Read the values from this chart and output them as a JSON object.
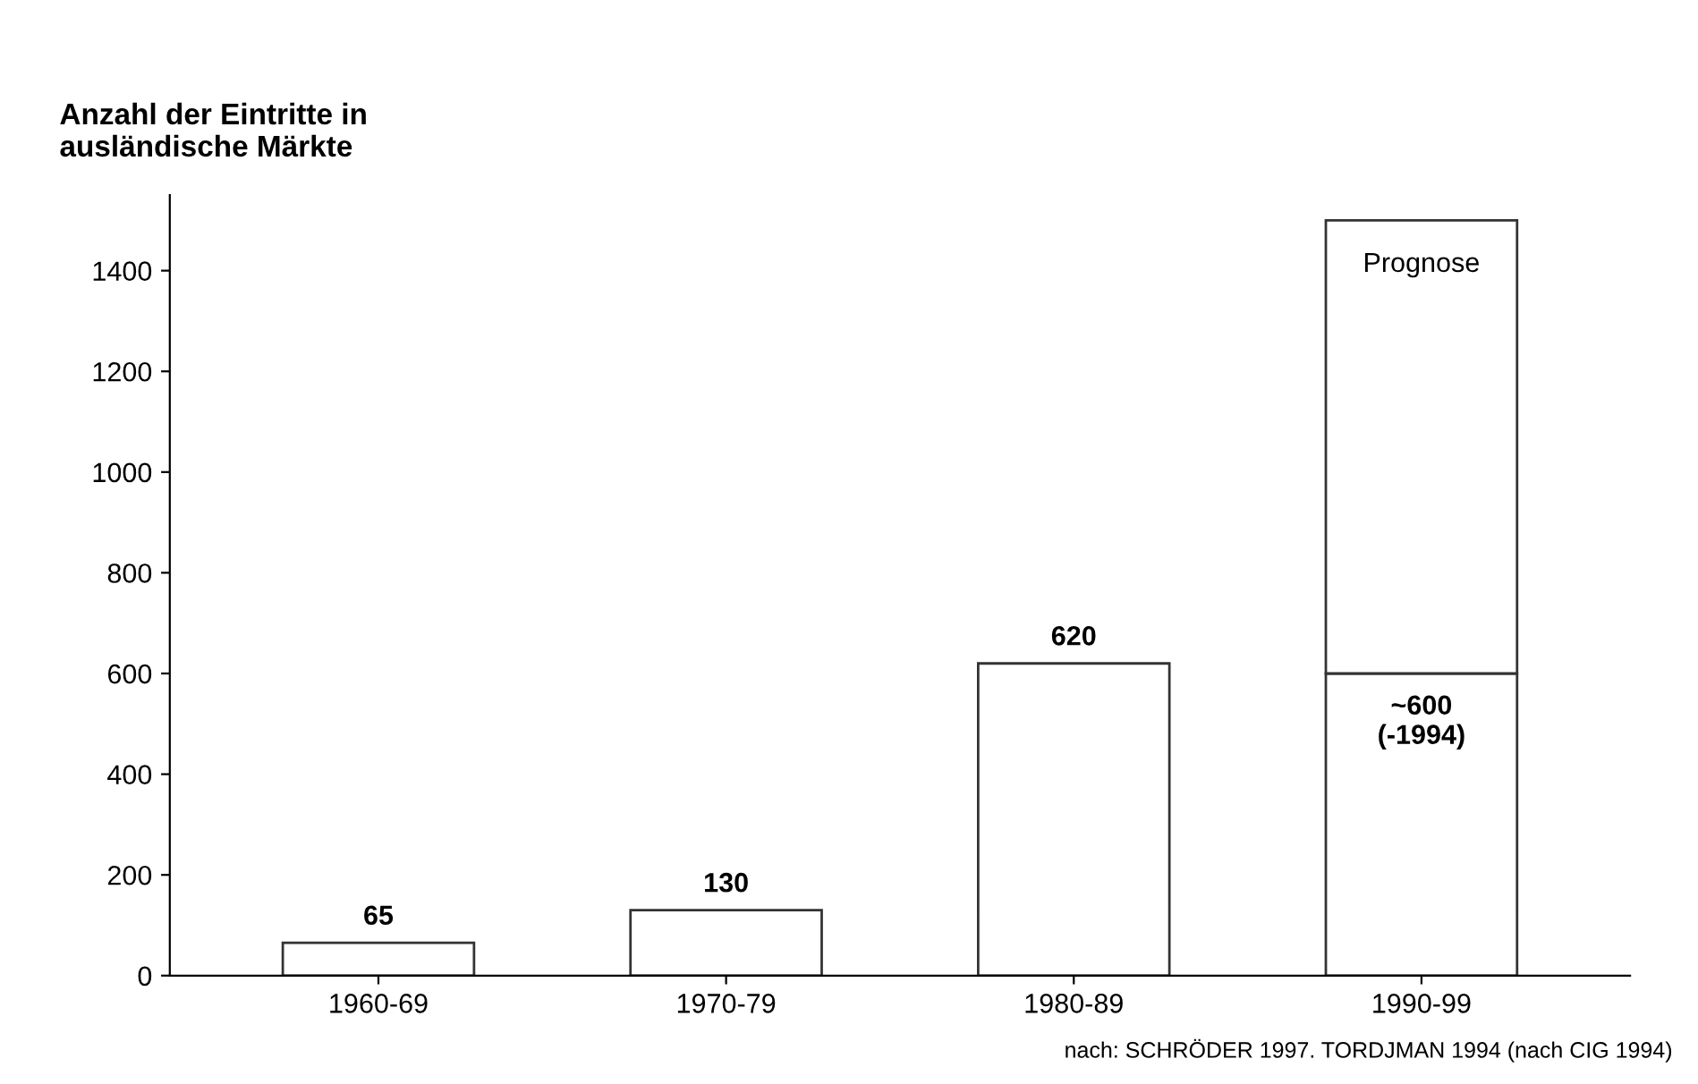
{
  "chart_data": {
    "type": "bar",
    "stacked": true,
    "ylabel": "Anzahl der Eintritte in\nausländische Märkte",
    "categories": [
      "1960-69",
      "1970-79",
      "1980-89",
      "1990-99"
    ],
    "series": [
      {
        "color": "#ffffff",
        "values": [
          65,
          130,
          620,
          600
        ],
        "value_labels": [
          "65",
          "130",
          "620",
          "~600\n(-1994)"
        ]
      },
      {
        "name": "Prognose",
        "color": "#ffffff",
        "values": [
          null,
          null,
          null,
          900
        ]
      }
    ],
    "ylim": [
      0,
      1550
    ],
    "yticks": [
      0,
      200,
      400,
      600,
      800,
      1000,
      1200,
      1400
    ],
    "grid": false,
    "legend": false,
    "annotations": [
      "nach: SCHRÖDER 1997. TORDJMAN 1994 (nach CIG 1994)"
    ]
  }
}
